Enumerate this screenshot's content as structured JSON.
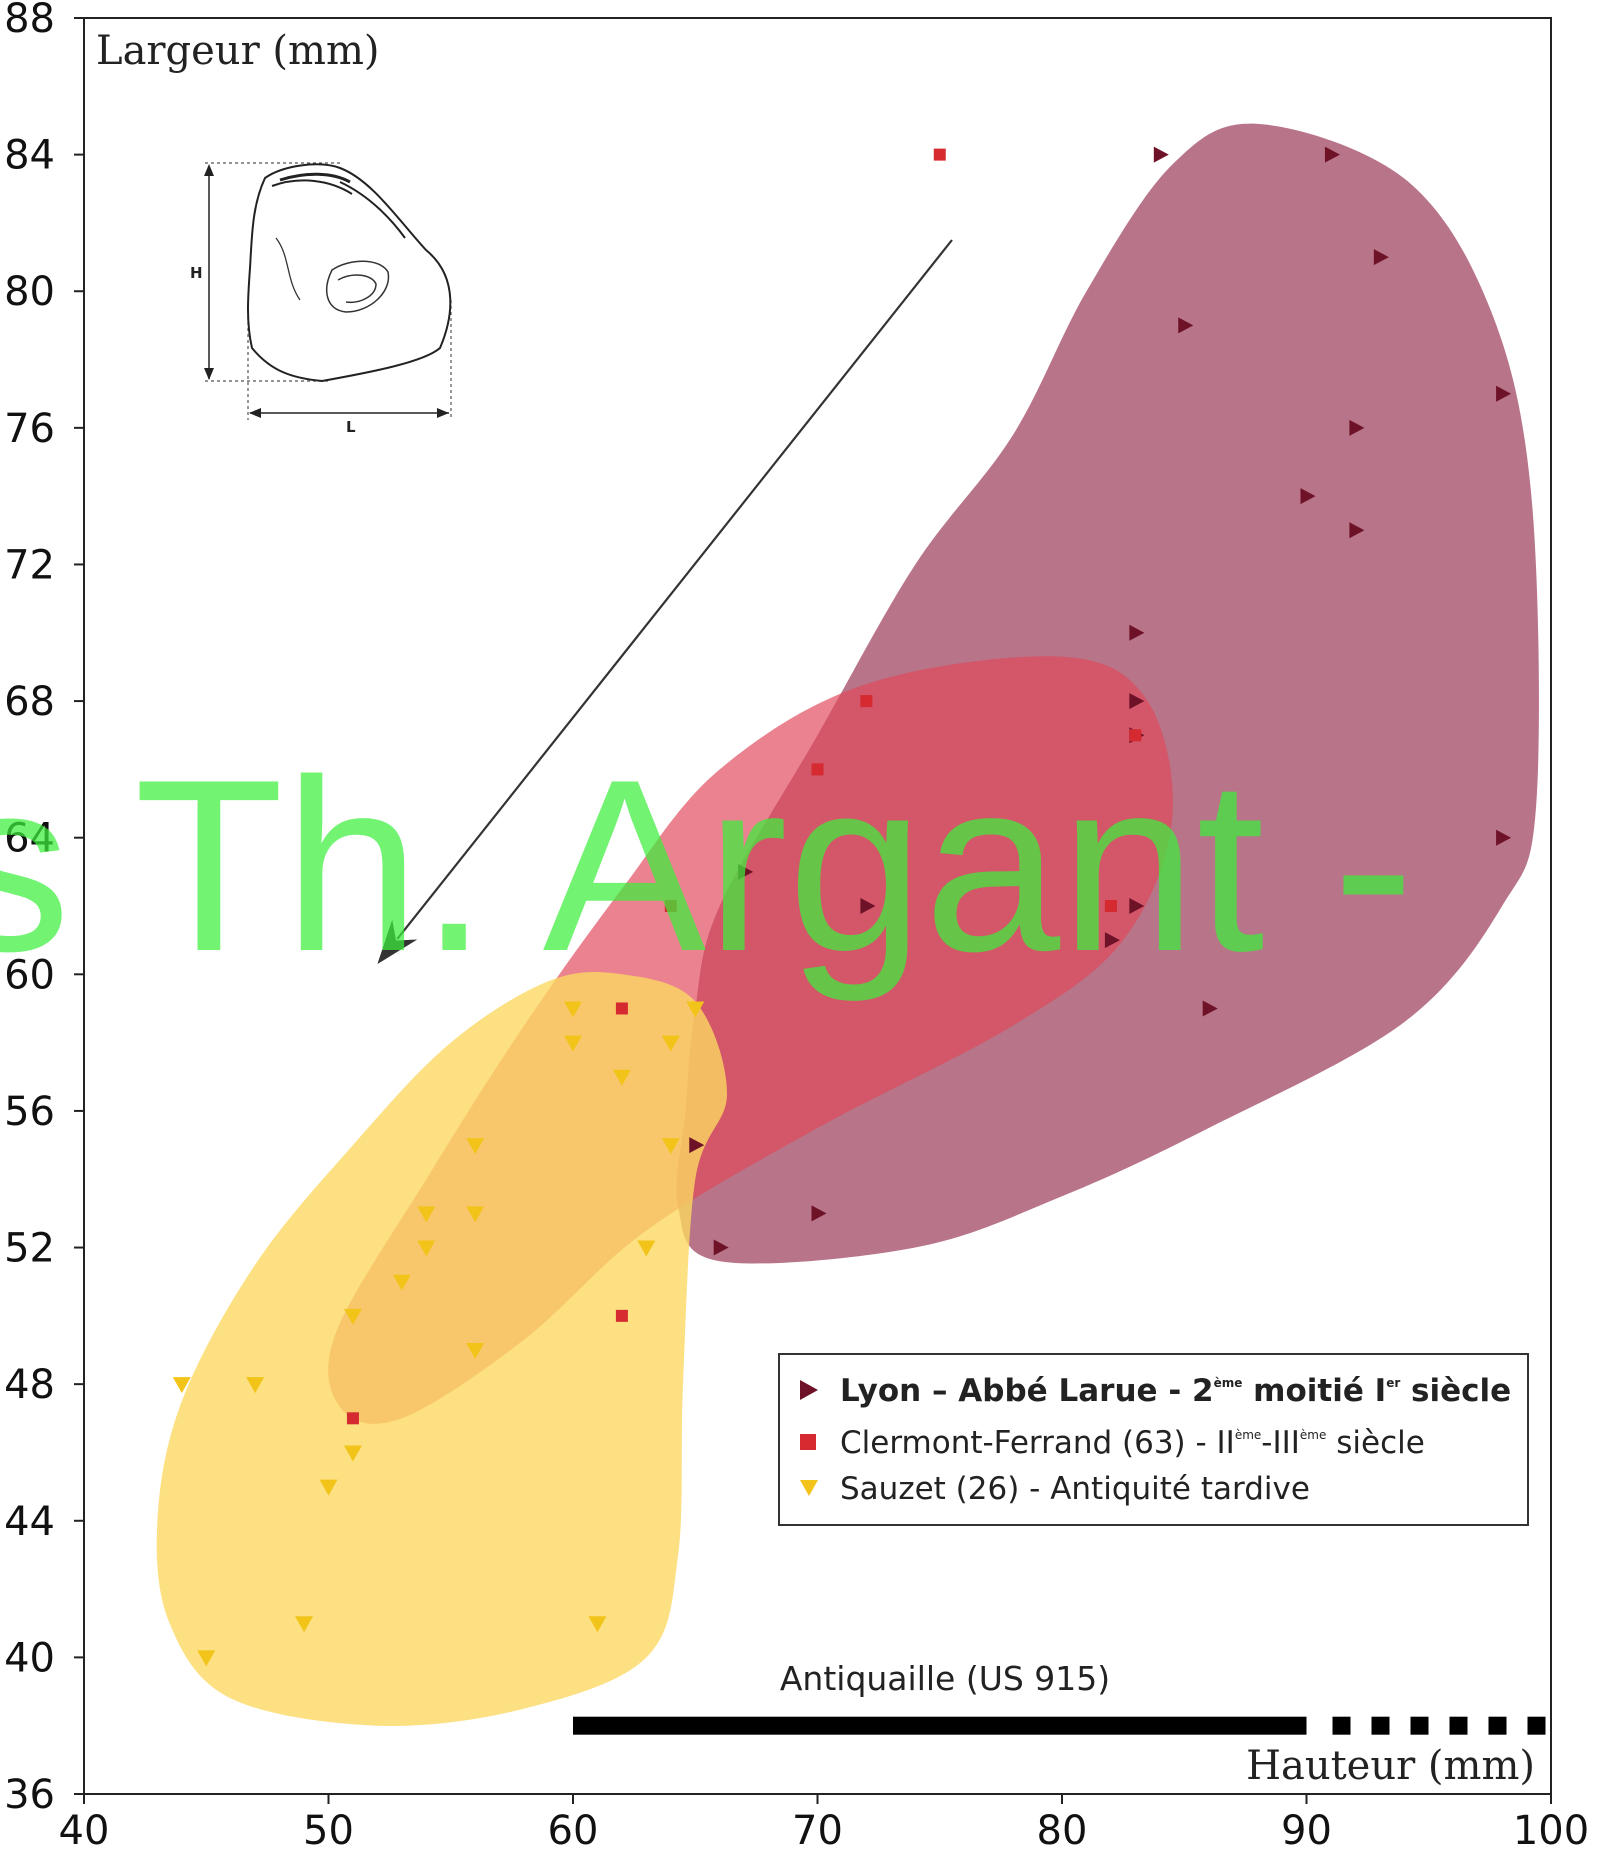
{
  "chart_data": {
    "type": "scatter",
    "xlabel": "Hauteur (mm)",
    "ylabel": "Largeur (mm)",
    "xlim": [
      40,
      100
    ],
    "ylim": [
      36,
      88
    ],
    "xticks": [
      40,
      50,
      60,
      70,
      80,
      90,
      100
    ],
    "yticks": [
      36,
      40,
      44,
      48,
      52,
      56,
      60,
      64,
      68,
      72,
      76,
      80,
      84,
      88
    ],
    "grid": false,
    "legend_position": "bottom-right",
    "series": [
      {
        "name": "Lyon – Abbé Larue - 2ème moitié Ier siècle",
        "marker": "triangle-right",
        "color": "#6e1228",
        "hull_color": "#9c3e5a",
        "points": [
          [
            84,
            84
          ],
          [
            91,
            84
          ],
          [
            93,
            81
          ],
          [
            85,
            79
          ],
          [
            98,
            77
          ],
          [
            92,
            76
          ],
          [
            90,
            74
          ],
          [
            92,
            73
          ],
          [
            83,
            70
          ],
          [
            83,
            68
          ],
          [
            83,
            67
          ],
          [
            98,
            64
          ],
          [
            67,
            63
          ],
          [
            72,
            62
          ],
          [
            83,
            62
          ],
          [
            82,
            61
          ],
          [
            86,
            59
          ],
          [
            65,
            55
          ],
          [
            70,
            53
          ],
          [
            66,
            52
          ]
        ]
      },
      {
        "name": "Clermont-Ferrand (63) - IIème-IIIème siècle",
        "marker": "square",
        "color": "#d42a30",
        "hull_color": "#e0485a",
        "points": [
          [
            75,
            84
          ],
          [
            72,
            68
          ],
          [
            83,
            67
          ],
          [
            70,
            66
          ],
          [
            64,
            62
          ],
          [
            82,
            62
          ],
          [
            62,
            59
          ],
          [
            62,
            50
          ],
          [
            51,
            47
          ]
        ]
      },
      {
        "name": "Sauzet (26) - Antiquité tardive",
        "marker": "triangle-down",
        "color": "#f2c41a",
        "hull_color": "#fbd862",
        "points": [
          [
            60,
            59
          ],
          [
            65,
            59
          ],
          [
            60,
            58
          ],
          [
            64,
            58
          ],
          [
            62,
            57
          ],
          [
            56,
            55
          ],
          [
            64,
            55
          ],
          [
            54,
            53
          ],
          [
            56,
            53
          ],
          [
            54,
            52
          ],
          [
            63,
            52
          ],
          [
            53,
            51
          ],
          [
            51,
            50
          ],
          [
            56,
            49
          ],
          [
            44,
            48
          ],
          [
            47,
            48
          ],
          [
            51,
            46
          ],
          [
            50,
            45
          ],
          [
            49,
            41
          ],
          [
            61,
            41
          ],
          [
            45,
            40
          ]
        ]
      }
    ],
    "annotations": [
      {
        "text": "Antiquaille (US 915)",
        "range_solid": [
          60,
          90
        ],
        "range_dashed": [
          90,
          100
        ],
        "y": 38
      }
    ],
    "arrow": {
      "from": [
        75.5,
        81.5
      ],
      "to": [
        52,
        60.3
      ]
    }
  },
  "watermark": "s Th. Argant -",
  "inset": {
    "height_label": "H",
    "length_label": "L"
  },
  "legend": {
    "lyon": {
      "main": "Lyon – Abbé Larue - 2",
      "sup1": "ème",
      "mid": " moitié I",
      "sup2": "er",
      "end": " siècle"
    },
    "clermont": {
      "main": "Clermont-Ferrand (63)  - II",
      "sup1": "ème",
      "mid": "-III",
      "sup2": "ème",
      "end": " siècle"
    },
    "sauzet": {
      "main": "Sauzet (26) - Antiquité tardive"
    }
  }
}
